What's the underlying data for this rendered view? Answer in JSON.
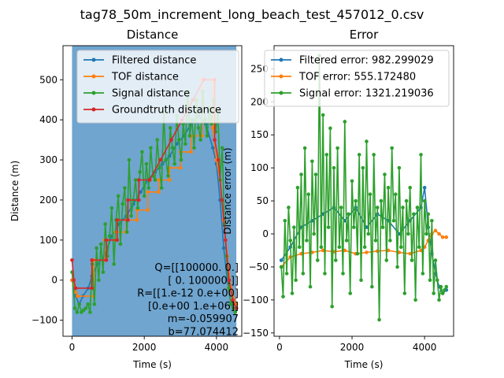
{
  "suptitle": "tag78_50m_increment_long_beach_test_457012_0.csv",
  "chart_data": [
    {
      "type": "line",
      "title": "Distance",
      "xlabel": "Time (s)",
      "ylabel": "Distance (m)",
      "xlim": [
        -250,
        4700
      ],
      "ylim": [
        -140,
        585
      ],
      "xticks": [
        0,
        2000,
        4000
      ],
      "yticks": [
        -100,
        0,
        100,
        200,
        300,
        400,
        500
      ],
      "shaded_band": {
        "x": [
          0,
          4550
        ],
        "color": "#6fa5cf"
      },
      "legend_position": "top-right",
      "series": [
        {
          "name": "Filtered distance",
          "color": "#1f77b4",
          "x": [
            0,
            100,
            200,
            300,
            450,
            550,
            700,
            900,
            1100,
            1300,
            1500,
            1700,
            1900,
            2100,
            2300,
            2500,
            2700,
            2900,
            3100,
            3300,
            3500,
            3700,
            3900,
            4000,
            4100,
            4200,
            4300,
            4400,
            4500,
            4550
          ],
          "y": [
            0,
            -40,
            -60,
            -40,
            -20,
            10,
            40,
            60,
            110,
            140,
            160,
            190,
            220,
            250,
            270,
            290,
            310,
            340,
            360,
            390,
            410,
            390,
            330,
            290,
            200,
            80,
            0,
            -60,
            -60,
            -70
          ]
        },
        {
          "name": "TOF distance",
          "color": "#ff7f0e",
          "x": [
            0,
            50,
            100,
            150,
            150,
            600,
            600,
            900,
            900,
            1200,
            1200,
            1500,
            1500,
            1800,
            1800,
            2100,
            2100,
            2400,
            2400,
            2700,
            2700,
            3000,
            3000,
            3300,
            3300,
            3600,
            3600,
            3900,
            3900,
            4000,
            4100,
            4200,
            4300,
            4400,
            4550
          ],
          "y": [
            0,
            -10,
            -30,
            -40,
            -40,
            -40,
            50,
            50,
            100,
            100,
            120,
            120,
            150,
            150,
            175,
            175,
            220,
            220,
            250,
            250,
            280,
            280,
            320,
            320,
            360,
            360,
            500,
            500,
            380,
            300,
            250,
            150,
            60,
            -20,
            -60
          ]
        },
        {
          "name": "Signal distance",
          "color": "#2ca02c",
          "x": [
            0,
            80,
            140,
            200,
            260,
            320,
            380,
            440,
            500,
            560,
            620,
            680,
            740,
            800,
            860,
            920,
            980,
            1040,
            1100,
            1160,
            1220,
            1280,
            1340,
            1400,
            1460,
            1520,
            1580,
            1640,
            1700,
            1760,
            1820,
            1880,
            1940,
            2000,
            2060,
            2120,
            2180,
            2240,
            2300,
            2360,
            2420,
            2480,
            2540,
            2600,
            2660,
            2720,
            2780,
            2840,
            2900,
            2960,
            3020,
            3080,
            3140,
            3200,
            3260,
            3320,
            3380,
            3440,
            3500,
            3560,
            3620,
            3680,
            3740,
            3800,
            3860,
            3920,
            3980,
            4040,
            4100,
            4160,
            4220,
            4280,
            4340,
            4400,
            4460,
            4520
          ],
          "y": [
            20,
            -70,
            -80,
            -60,
            -80,
            -75,
            -70,
            -60,
            -80,
            40,
            -60,
            80,
            0,
            90,
            20,
            140,
            60,
            110,
            180,
            40,
            150,
            210,
            90,
            190,
            230,
            120,
            300,
            160,
            200,
            250,
            180,
            270,
            320,
            210,
            290,
            230,
            330,
            260,
            250,
            350,
            280,
            230,
            420,
            300,
            260,
            380,
            330,
            290,
            410,
            350,
            300,
            390,
            340,
            470,
            360,
            400,
            330,
            450,
            380,
            350,
            470,
            400,
            360,
            430,
            390,
            450,
            370,
            420,
            250,
            330,
            140,
            60,
            -20,
            -60,
            -70,
            -80
          ]
        },
        {
          "name": "Groundtruth distance",
          "color": "#d62728",
          "x": [
            0,
            50,
            100,
            100,
            550,
            550,
            950,
            950,
            1250,
            1250,
            1550,
            1550,
            1850,
            1850,
            2150,
            2150,
            2450,
            2450,
            2750,
            2750,
            3050,
            3050,
            3350,
            3350,
            3650,
            3650,
            3950,
            3950,
            4050,
            4150,
            4250,
            4350,
            4450,
            4550
          ],
          "y": [
            50,
            0,
            -20,
            -20,
            -20,
            50,
            50,
            100,
            100,
            150,
            150,
            200,
            200,
            250,
            250,
            250,
            300,
            300,
            350,
            350,
            400,
            400,
            450,
            450,
            500,
            500,
            500,
            350,
            300,
            200,
            100,
            0,
            -50,
            -70
          ]
        }
      ]
    },
    {
      "type": "line",
      "title": "Error",
      "xlabel": "Time (s)",
      "ylabel": "Distance error (m)",
      "xlim": [
        -150,
        4800
      ],
      "ylim": [
        -155,
        285
      ],
      "xticks": [
        0,
        2000,
        4000
      ],
      "yticks": [
        -150,
        -100,
        -50,
        0,
        50,
        100,
        150,
        200,
        250
      ],
      "legend_position": "top-right",
      "series": [
        {
          "name": "Filtered error: 982.299029",
          "color": "#1f77b4",
          "x": [
            50,
            300,
            600,
            900,
            1200,
            1500,
            1800,
            2100,
            2400,
            2700,
            3000,
            3300,
            3600,
            3900,
            4000,
            4100,
            4200,
            4300,
            4400,
            4500,
            4600
          ],
          "y": [
            -40,
            -20,
            10,
            20,
            30,
            40,
            20,
            40,
            10,
            30,
            20,
            0,
            20,
            40,
            70,
            10,
            -30,
            -60,
            -80,
            -90,
            -85
          ]
        },
        {
          "name": "TOF error: 555.172480",
          "color": "#ff7f0e",
          "x": [
            50,
            300,
            600,
            900,
            1200,
            1500,
            1800,
            2100,
            2400,
            2700,
            3000,
            3300,
            3600,
            3900,
            4000,
            4100,
            4200,
            4300,
            4400,
            4500,
            4600
          ],
          "y": [
            -50,
            -35,
            -30,
            -28,
            -25,
            -27,
            -25,
            -30,
            -28,
            -26,
            -25,
            -28,
            -30,
            -25,
            -20,
            -10,
            0,
            5,
            0,
            -5,
            -5
          ]
        },
        {
          "name": "Signal error: 1321.219036",
          "color": "#2ca02c",
          "x": [
            50,
            100,
            150,
            200,
            250,
            300,
            350,
            400,
            450,
            500,
            550,
            600,
            650,
            700,
            750,
            800,
            850,
            900,
            950,
            1000,
            1050,
            1100,
            1150,
            1200,
            1250,
            1300,
            1350,
            1400,
            1450,
            1500,
            1550,
            1600,
            1650,
            1700,
            1750,
            1800,
            1850,
            1900,
            1950,
            2000,
            2050,
            2100,
            2150,
            2200,
            2250,
            2300,
            2350,
            2400,
            2450,
            2500,
            2550,
            2600,
            2650,
            2700,
            2750,
            2800,
            2850,
            2900,
            2950,
            3000,
            3050,
            3100,
            3150,
            3200,
            3250,
            3300,
            3350,
            3400,
            3450,
            3500,
            3550,
            3600,
            3650,
            3700,
            3750,
            3800,
            3850,
            3900,
            3950,
            4000,
            4050,
            4100,
            4150,
            4200,
            4250,
            4300,
            4350,
            4400,
            4450,
            4500,
            4550,
            4600
          ],
          "y": [
            -50,
            -95,
            20,
            -60,
            40,
            -10,
            -90,
            10,
            -70,
            70,
            -20,
            90,
            -60,
            130,
            -10,
            60,
            -80,
            110,
            0,
            90,
            -40,
            270,
            -20,
            180,
            -60,
            120,
            10,
            160,
            -110,
            100,
            -40,
            130,
            -20,
            40,
            -60,
            170,
            -10,
            30,
            -90,
            80,
            10,
            50,
            -30,
            120,
            -70,
            100,
            -20,
            140,
            0,
            60,
            -80,
            120,
            -10,
            40,
            -130,
            50,
            10,
            90,
            -40,
            70,
            -10,
            130,
            20,
            60,
            -50,
            100,
            -20,
            40,
            -90,
            50,
            0,
            70,
            -40,
            30,
            -100,
            40,
            -20,
            120,
            -60,
            50,
            0,
            30,
            -70,
            20,
            -90,
            -40,
            -70,
            -100,
            -80,
            -90,
            -85,
            -80
          ]
        }
      ]
    }
  ],
  "annotation": {
    "lines": [
      "Q=[[100000.        0.]",
      "[     0. 100000.]]",
      "R=[[1.e-12 0.e+00]",
      "[0.e+00 1.e+06]]",
      "m=-0.059907",
      "b=77.074412"
    ]
  }
}
